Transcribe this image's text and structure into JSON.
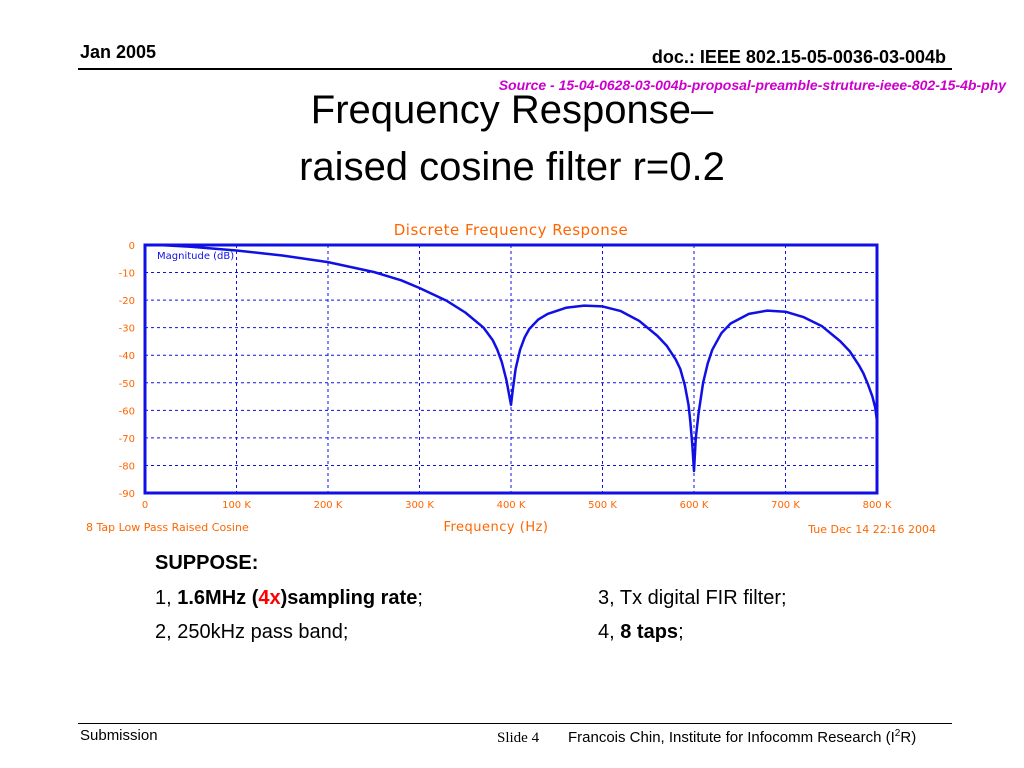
{
  "header": {
    "date": "Jan 2005",
    "doc_id": "doc.: IEEE 802.15-05-0036-03-004b",
    "source": "Source - 15-04-0628-03-004b-proposal-preamble-struture-ieee-802-15-4b-phy"
  },
  "title": {
    "line1": "Frequency Response–",
    "line2": "raised cosine filter r=0.2"
  },
  "chart_data": {
    "type": "line",
    "title": "Discrete Frequency Response",
    "xlabel": "Frequency (Hz)",
    "ylabel": "Magnitude (dB)",
    "xlim": [
      0,
      800000
    ],
    "ylim": [
      -90,
      0
    ],
    "xticks": [
      0,
      100000,
      200000,
      300000,
      400000,
      500000,
      600000,
      700000,
      800000
    ],
    "xtick_labels": [
      "0",
      "100 K",
      "200 K",
      "300 K",
      "400 K",
      "500 K",
      "600 K",
      "700 K",
      "800 K"
    ],
    "yticks": [
      0,
      -10,
      -20,
      -30,
      -40,
      -50,
      -60,
      -70,
      -80,
      -90
    ],
    "ytick_labels": [
      "0",
      "-10",
      "-20",
      "-30",
      "-40",
      "-50",
      "-60",
      "-70",
      "-80",
      "-90"
    ],
    "grid": true,
    "colors": {
      "line": "#1010e6",
      "title": "#ff6600",
      "axis_text": "#ff6600",
      "frame": "#1010e6",
      "grid": "#1010e6"
    },
    "footer_left": "8 Tap Low Pass Raised Cosine",
    "footer_right": "Tue Dec 14 22:16 2004",
    "series": [
      {
        "x": [
          0,
          20000,
          50000,
          100000,
          150000,
          200000,
          250000,
          280000,
          300000,
          330000,
          350000,
          370000,
          380000,
          385000,
          390000,
          395000,
          398000,
          400000,
          402000,
          405000,
          410000,
          415000,
          420000,
          430000,
          440000,
          460000,
          480000,
          500000,
          520000,
          540000,
          560000,
          570000,
          580000,
          585000,
          590000,
          594000,
          596000,
          598000,
          600000,
          602000,
          605000,
          610000,
          615000,
          620000,
          630000,
          640000,
          660000,
          680000,
          700000,
          720000,
          740000,
          760000,
          770000,
          780000,
          785000,
          790000,
          795000,
          798000,
          800000
        ],
        "y": [
          0,
          -0.1,
          -0.6,
          -2.0,
          -3.8,
          -6.2,
          -9.8,
          -12.8,
          -15.6,
          -20.3,
          -24.5,
          -30,
          -34.5,
          -38,
          -42.5,
          -49,
          -54.5,
          -58,
          -52.5,
          -45,
          -38,
          -33.5,
          -30.5,
          -27,
          -25,
          -22.8,
          -22,
          -22.3,
          -24,
          -27.5,
          -33,
          -36.5,
          -41.5,
          -45,
          -51,
          -58,
          -64,
          -72,
          -82,
          -70,
          -61,
          -50,
          -43,
          -38,
          -32,
          -28.5,
          -25,
          -23.8,
          -24.2,
          -26.2,
          -29.5,
          -35,
          -38.5,
          -43.5,
          -46.5,
          -50.5,
          -55,
          -59,
          -64
        ]
      }
    ]
  },
  "notes": {
    "suppose": "SUPPOSE:",
    "item1_prefix": "1, ",
    "item1_bold_a": "1.6MHz (",
    "item1_red": "4x",
    "item1_bold_b": ")sampling rate",
    "item1_suffix": ";",
    "item3": "3, Tx digital FIR filter;",
    "item2": "2, 250kHz pass band;",
    "item4_prefix": "4, ",
    "item4_bold": "8 taps",
    "item4_suffix": ";"
  },
  "footer": {
    "left": "Submission",
    "slide": "Slide 4",
    "right_a": "Francois Chin, Institute for Infocomm Research (I",
    "right_sup": "2",
    "right_b": "R)"
  }
}
